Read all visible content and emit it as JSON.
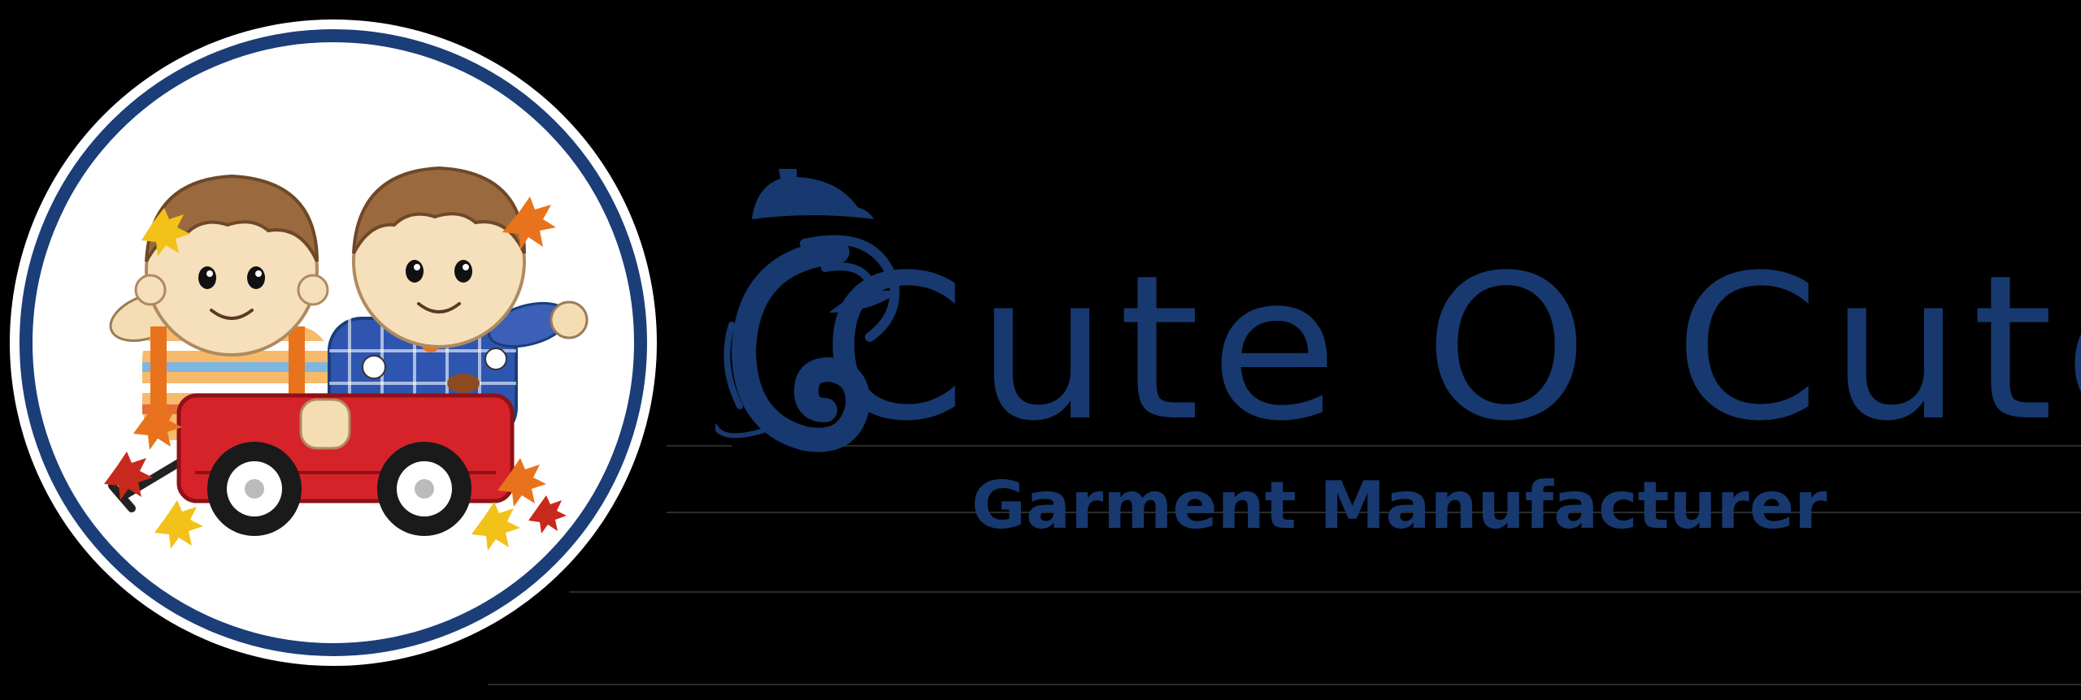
{
  "brand": {
    "name": "Cute O Cute",
    "tagline": "Garment Manufacturer"
  },
  "colors": {
    "background": "#000000",
    "brand_navy": "#17396f",
    "ring_navy": "#1b3d78",
    "wagon_red": "#d6232a",
    "leaf_orange": "#e8731c",
    "leaf_yellow": "#f2c21a",
    "hair_brown": "#9a6a3e"
  },
  "icons": {
    "emblem": "kids-in-wagon-illustration",
    "mark": "ganesha-hook-mark"
  }
}
